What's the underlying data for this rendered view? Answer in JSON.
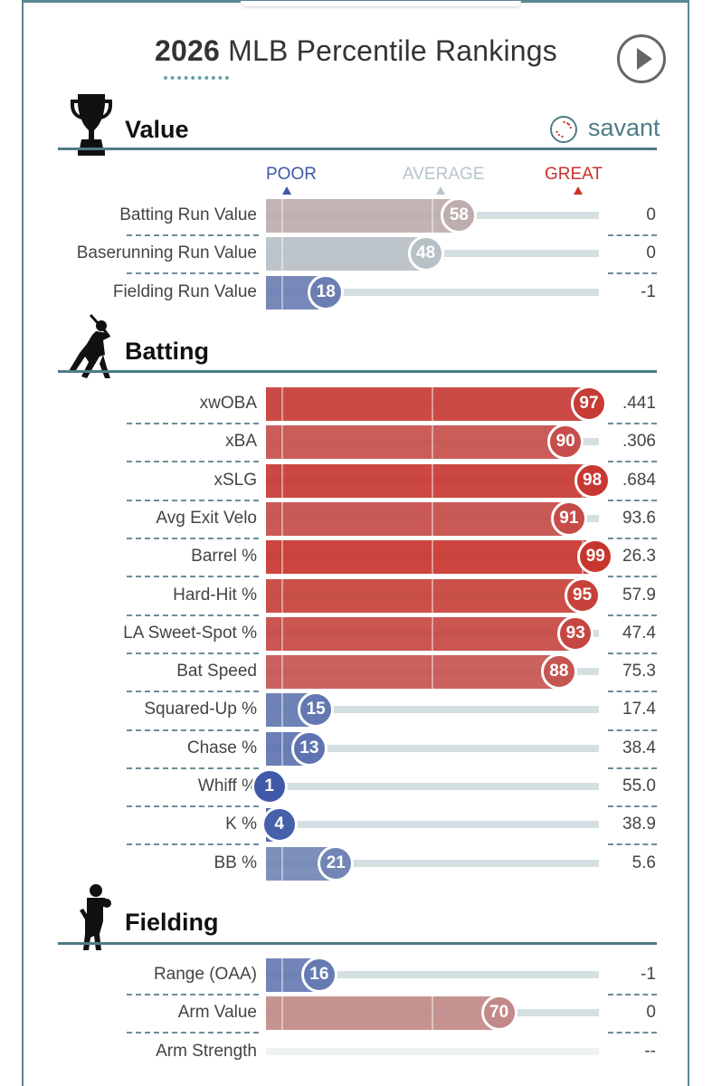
{
  "header": {
    "title_year": "2026",
    "title_rest": "MLB Percentile Rankings",
    "brand": "savant",
    "scale_labels": {
      "poor": "POOR",
      "average": "AVERAGE",
      "great": "GREAT"
    }
  },
  "colors": {
    "frame": "#5a8890",
    "poor": "#3d57a8",
    "average": "#b4c6cb",
    "great": "#c8322c",
    "track": "#d4dfe2"
  },
  "sections": {
    "value": {
      "title": "Value",
      "icon": "trophy-icon"
    },
    "batting": {
      "title": "Batting",
      "icon": "batter-icon"
    },
    "fielding": {
      "title": "Fielding",
      "icon": "fielder-icon"
    }
  },
  "chart_data": {
    "type": "bar",
    "title": "2026 MLB Percentile Rankings",
    "xlim": [
      0,
      100
    ],
    "groups": [
      {
        "name": "Value",
        "rows": [
          {
            "label": "Batting Run Value",
            "percentile": 58,
            "value": "0"
          },
          {
            "label": "Baserunning Run Value",
            "percentile": 48,
            "value": "0"
          },
          {
            "label": "Fielding Run Value",
            "percentile": 18,
            "value": "-1"
          }
        ]
      },
      {
        "name": "Batting",
        "rows": [
          {
            "label": "xwOBA",
            "percentile": 97,
            "value": ".441"
          },
          {
            "label": "xBA",
            "percentile": 90,
            "value": ".306"
          },
          {
            "label": "xSLG",
            "percentile": 98,
            "value": ".684"
          },
          {
            "label": "Avg Exit Velo",
            "percentile": 91,
            "value": "93.6"
          },
          {
            "label": "Barrel %",
            "percentile": 99,
            "value": "26.3"
          },
          {
            "label": "Hard-Hit %",
            "percentile": 95,
            "value": "57.9"
          },
          {
            "label": "LA Sweet-Spot %",
            "percentile": 93,
            "value": "47.4"
          },
          {
            "label": "Bat Speed",
            "percentile": 88,
            "value": "75.3"
          },
          {
            "label": "Squared-Up %",
            "percentile": 15,
            "value": "17.4"
          },
          {
            "label": "Chase %",
            "percentile": 13,
            "value": "38.4"
          },
          {
            "label": "Whiff %",
            "percentile": 1,
            "value": "55.0"
          },
          {
            "label": "K %",
            "percentile": 4,
            "value": "38.9"
          },
          {
            "label": "BB %",
            "percentile": 21,
            "value": "5.6"
          }
        ]
      },
      {
        "name": "Fielding",
        "rows": [
          {
            "label": "Range (OAA)",
            "percentile": 16,
            "value": "-1"
          },
          {
            "label": "Arm Value",
            "percentile": 70,
            "value": "0"
          },
          {
            "label": "Arm Strength",
            "percentile": null,
            "value": "--"
          }
        ]
      }
    ]
  }
}
